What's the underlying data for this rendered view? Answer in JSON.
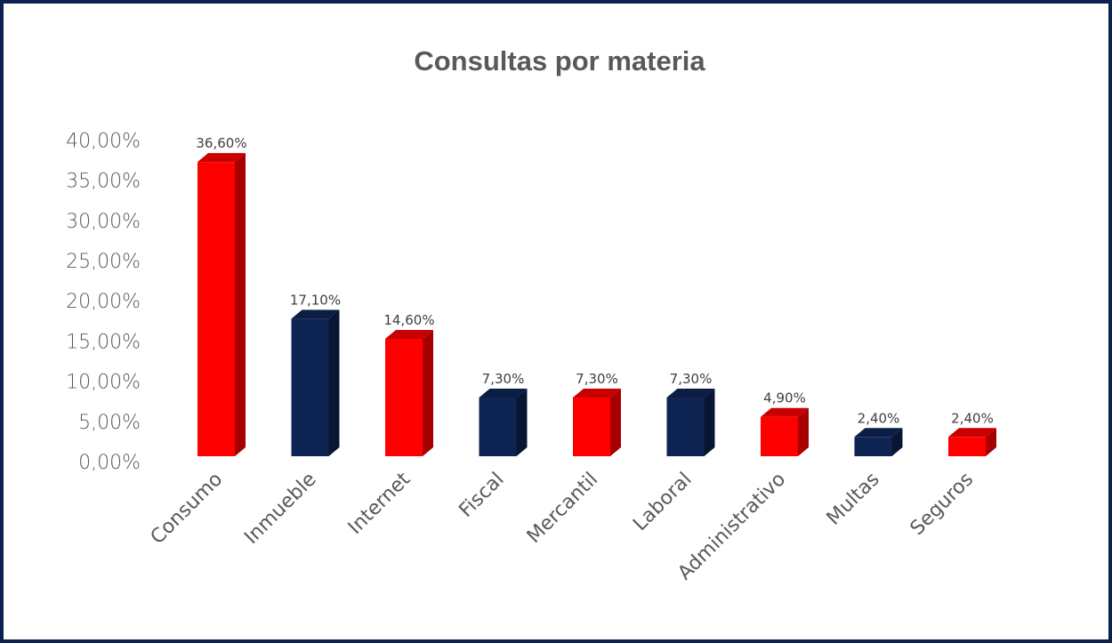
{
  "chart_data": {
    "type": "bar",
    "title": "Consultas por materia",
    "xlabel": "",
    "ylabel": "",
    "ylim": [
      0,
      40
    ],
    "yticks": [
      "0,00%",
      "5,00%",
      "10,00%",
      "15,00%",
      "20,00%",
      "25,00%",
      "30,00%",
      "35,00%",
      "40,00%"
    ],
    "categories": [
      "Consumo",
      "Inmueble",
      "Internet",
      "Fiscal",
      "Mercantil",
      "Laboral",
      "Administrativo",
      "Multas",
      "Seguros"
    ],
    "values": [
      36.6,
      17.1,
      14.6,
      7.3,
      7.3,
      7.3,
      4.9,
      2.4,
      2.4
    ],
    "data_labels": [
      "36,60%",
      "17,10%",
      "14,60%",
      "7,30%",
      "7,30%",
      "7,30%",
      "4,90%",
      "2,40%",
      "2,40%"
    ],
    "bar_colors": [
      "red",
      "navy",
      "red",
      "navy",
      "red",
      "navy",
      "red",
      "navy",
      "red"
    ],
    "palette": {
      "red": {
        "front": "#ff0000",
        "side": "#a80000",
        "top": "#c80000"
      },
      "navy": {
        "front": "#0e2452",
        "side": "#081634",
        "top": "#0b1d44"
      }
    },
    "grid": false,
    "legend": "none"
  }
}
